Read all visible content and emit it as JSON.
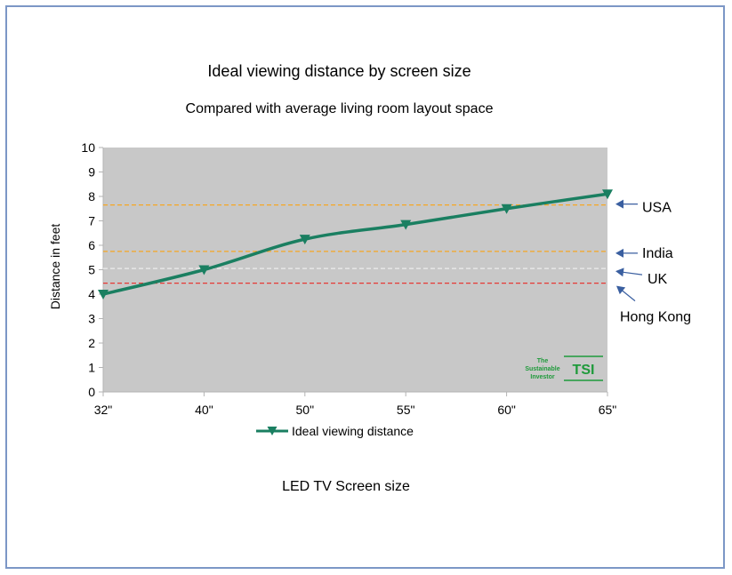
{
  "chart_data": {
    "type": "line",
    "title": "Ideal viewing distance by screen size",
    "subtitle": "Compared with average living room layout space",
    "xlabel": "LED TV Screen size",
    "ylabel": "Distance in feet",
    "categories": [
      "32\"",
      "40\"",
      "50\"",
      "55\"",
      "60\"",
      "65\""
    ],
    "series": [
      {
        "name": "Ideal viewing distance",
        "values": [
          4.0,
          5.0,
          6.25,
          6.85,
          7.5,
          8.1
        ],
        "color": "#1a7f61"
      }
    ],
    "ylim": [
      0,
      10
    ],
    "yticks": [
      0,
      1,
      2,
      3,
      4,
      5,
      6,
      7,
      8,
      9,
      10
    ],
    "grid": false,
    "plot_background": "#c8c8c8",
    "reference_lines": [
      {
        "label": "USA",
        "value": 7.65,
        "color": "#f5a623"
      },
      {
        "label": "India",
        "value": 5.75,
        "color": "#f5a623"
      },
      {
        "label": "UK",
        "value": 5.05,
        "color": "#eeeeee"
      },
      {
        "label": "Hong Kong",
        "value": 4.45,
        "color": "#e53935"
      }
    ],
    "annotation_arrow_color": "#3a5fa0",
    "watermark": {
      "lines": [
        "The",
        "Sustainable",
        "Investor"
      ],
      "logo_text": "TSI",
      "color": "#1e9a3a"
    },
    "legend_position": "bottom"
  }
}
